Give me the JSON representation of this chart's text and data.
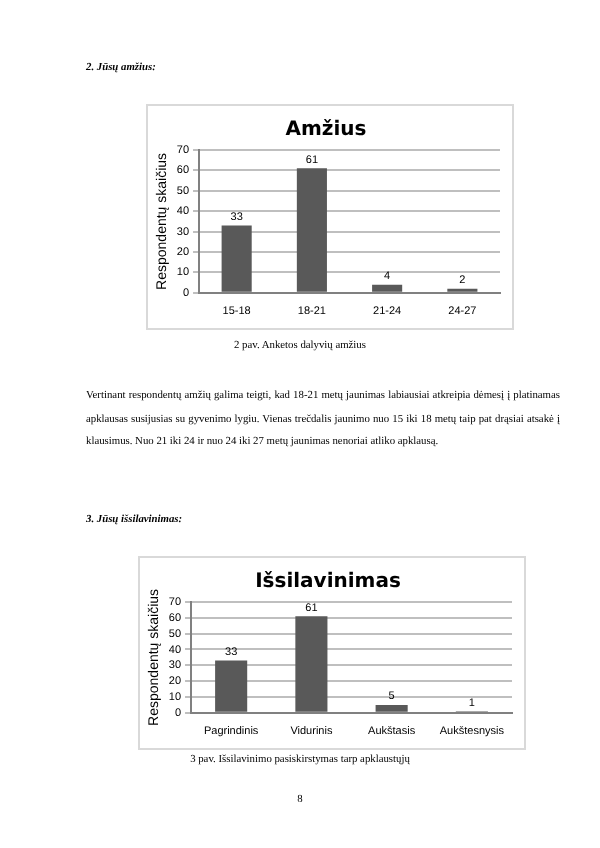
{
  "chart_data": [
    {
      "type": "bar",
      "title": "Amžius",
      "ylabel": "Respondentų skaičius",
      "categories": [
        "15-18",
        "18-21",
        "21-24",
        "24-27"
      ],
      "values": [
        33,
        61,
        4,
        2
      ],
      "color": "#595959",
      "ylim": [
        0,
        70
      ],
      "yticks": [
        0,
        10,
        20,
        30,
        40,
        50,
        60,
        70
      ],
      "grid": "y",
      "legend": false,
      "data_labels": true,
      "annotations": [
        "2. Jūsų amžius:",
        "2 pav. Anketos dalyvių amžius",
        "Vertinant respondentų amžių galima teigti, kad 18-21 metų jaunimas labiausiai atkreipia dėmesį į platinamas apklausas susijusias su gyvenimo lygiu. Vienas trečdalis jaunimo nuo 15 iki 18 metų taip pat drąsiai atsakė į klausimus. Nuo 21 iki 24 ir nuo 24 iki 27 metų jaunimas nenoriai atliko apklausą."
      ]
    },
    {
      "type": "bar",
      "title": "Išsilavinimas",
      "ylabel": "Respondentų skaičius",
      "categories": [
        "Pagrindinis",
        "Vidurinis",
        "Aukštasis",
        "Aukštesnysis"
      ],
      "values": [
        33,
        61,
        5,
        1
      ],
      "color": "#595959",
      "ylim": [
        0,
        70
      ],
      "yticks": [
        0,
        10,
        20,
        30,
        40,
        50,
        60,
        70
      ],
      "grid": "y",
      "legend": false,
      "data_labels": true,
      "annotations": [
        "3. Jūsų išsilavinimas:",
        "3 pav. Išsilavinimo pasiskirstymas tarp apklaustųjų",
        "8"
      ]
    }
  ]
}
